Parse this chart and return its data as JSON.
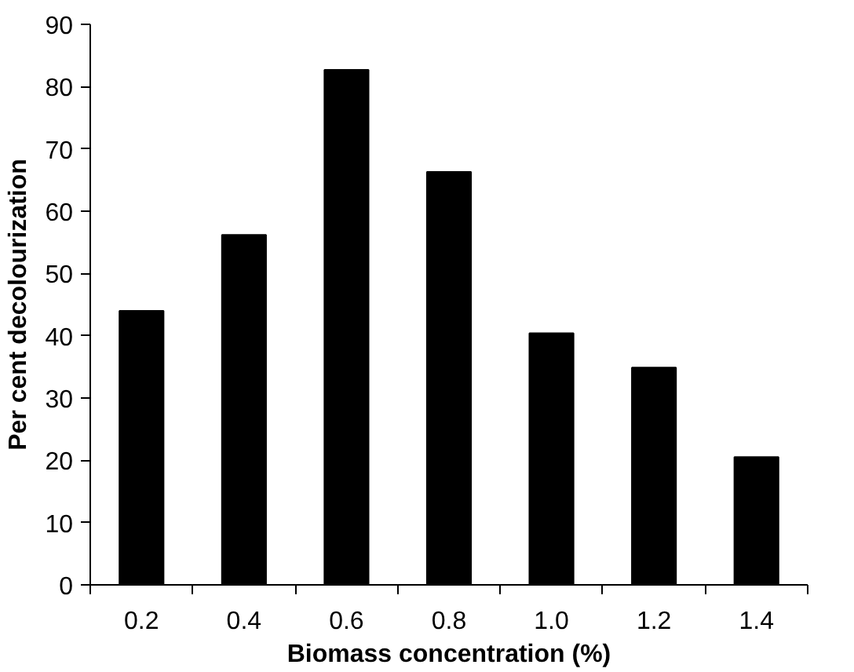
{
  "chart_data": {
    "type": "bar",
    "xlabel": "Biomass concentration (%)",
    "ylabel": "Per cent decolourization",
    "categories": [
      "0.2",
      "0.4",
      "0.6",
      "0.8",
      "1.0",
      "1.2",
      "1.4"
    ],
    "values": [
      44.0,
      56.2,
      82.7,
      66.3,
      40.4,
      34.9,
      20.5
    ],
    "color": "#000000",
    "ylim": [
      0,
      90
    ],
    "yticks": [
      0,
      10,
      20,
      30,
      40,
      50,
      60,
      70,
      80,
      90
    ],
    "grid": false
  }
}
